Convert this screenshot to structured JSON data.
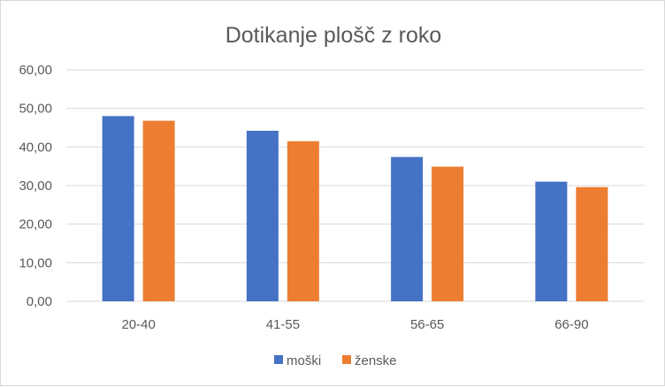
{
  "chart_data": {
    "type": "bar",
    "title": "Dotikanje plošč z roko",
    "categories": [
      "20-40",
      "41-55",
      "56-65",
      "66-90"
    ],
    "series": [
      {
        "name": "moški",
        "values": [
          48.0,
          44.2,
          37.4,
          31.0
        ],
        "color": "#4472c4"
      },
      {
        "name": "ženske",
        "values": [
          46.8,
          41.5,
          34.9,
          29.6
        ],
        "color": "#ed7d31"
      }
    ],
    "ylim": [
      0,
      60
    ],
    "yticks": [
      "0,00",
      "10,00",
      "20,00",
      "30,00",
      "40,00",
      "50,00",
      "60,00"
    ],
    "grid": true,
    "legend_position": "bottom"
  }
}
